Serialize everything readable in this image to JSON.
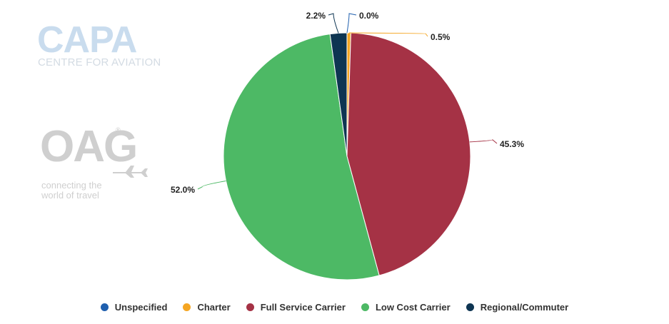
{
  "logos": {
    "capa": {
      "word": "CAPA",
      "subtitle": "CENTRE FOR AVIATION"
    },
    "oag": {
      "word": "OAG",
      "registered": "®",
      "tagline_line1": "connecting the",
      "tagline_line2": "world of travel"
    }
  },
  "chart_data": {
    "type": "pie",
    "start_angle_deg": 0,
    "direction": "clockwise",
    "legend_placement": "bottom",
    "slices": [
      {
        "name": "Unspecified",
        "value": 0.0,
        "label": "0.0%",
        "color": "#1f5fae"
      },
      {
        "name": "Charter",
        "value": 0.5,
        "label": "0.5%",
        "color": "#f5a623"
      },
      {
        "name": "Full Service Carrier",
        "value": 45.3,
        "label": "45.3%",
        "color": "#a53245"
      },
      {
        "name": "Low Cost Carrier",
        "value": 52.0,
        "label": "52.0%",
        "color": "#4db965"
      },
      {
        "name": "Regional/Commuter",
        "value": 2.2,
        "label": "2.2%",
        "color": "#0e3552"
      }
    ]
  }
}
